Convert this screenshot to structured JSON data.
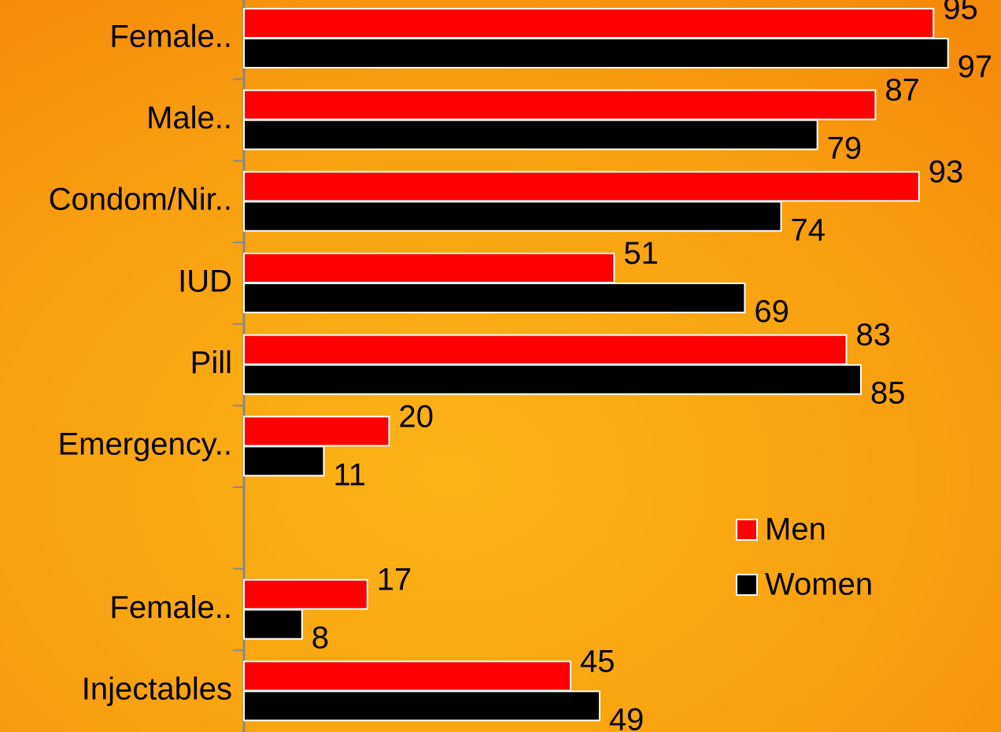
{
  "chart_data": {
    "type": "hbar",
    "categories": [
      "Female..",
      "Male..",
      "Condom/Nir..",
      "IUD",
      "Pill",
      "Emergency..",
      null,
      "Female..",
      "Injectables"
    ],
    "series": [
      {
        "name": "Men",
        "color": "#ff0000",
        "values": [
          95,
          87,
          93,
          51,
          83,
          20,
          null,
          17,
          45
        ]
      },
      {
        "name": "Women",
        "color": "#000000",
        "values": [
          97,
          79,
          74,
          69,
          85,
          11,
          null,
          8,
          49
        ]
      }
    ],
    "xlim": [
      0,
      104.3
    ],
    "legend": "lower right"
  }
}
